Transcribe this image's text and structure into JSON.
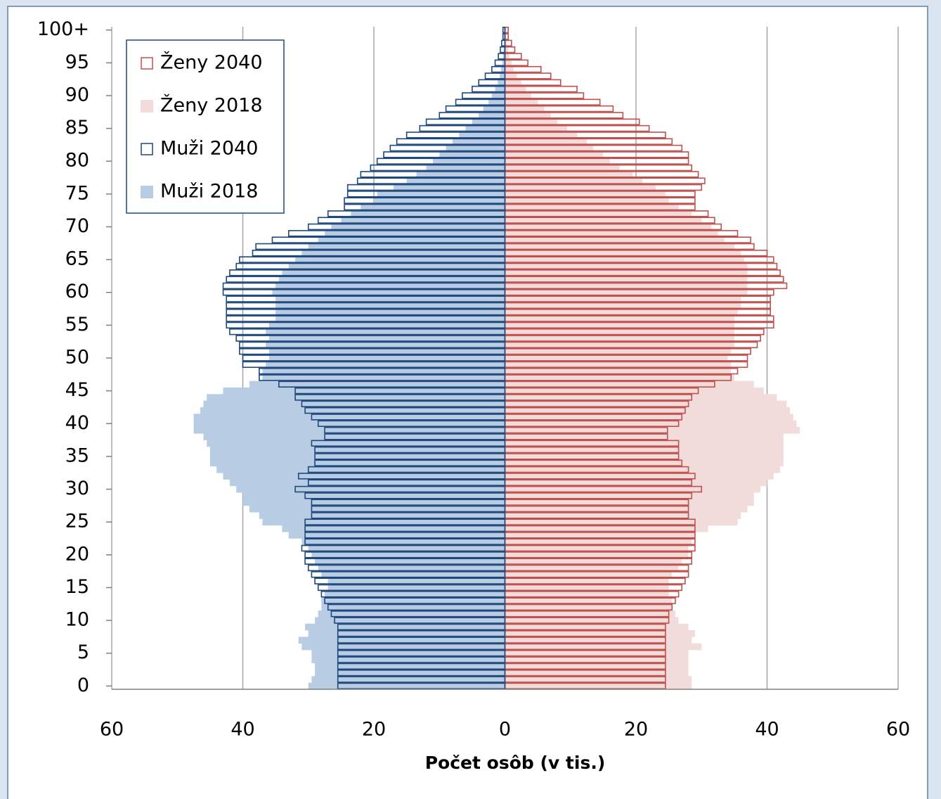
{
  "chart_data": {
    "type": "pyramid",
    "xlabel": "Počet osôb (v tis.)",
    "categories": [
      "0",
      null,
      null,
      null,
      null,
      "5",
      null,
      null,
      null,
      null,
      "10",
      null,
      null,
      null,
      null,
      "15",
      null,
      null,
      null,
      null,
      "20",
      null,
      null,
      null,
      null,
      "25",
      null,
      null,
      null,
      null,
      "30",
      null,
      null,
      null,
      null,
      "35",
      null,
      null,
      null,
      null,
      "40",
      null,
      null,
      null,
      null,
      "45",
      null,
      null,
      null,
      null,
      "50",
      null,
      null,
      null,
      null,
      "55",
      null,
      null,
      null,
      null,
      "60",
      null,
      null,
      null,
      null,
      "65",
      null,
      null,
      null,
      null,
      "70",
      null,
      null,
      null,
      null,
      "75",
      null,
      null,
      null,
      null,
      "80",
      null,
      null,
      null,
      null,
      "85",
      null,
      null,
      null,
      null,
      "90",
      null,
      null,
      null,
      null,
      "95",
      null,
      null,
      null,
      null,
      "100+"
    ],
    "xlim": [
      -60,
      60
    ],
    "xticks": [
      {
        "value": -60,
        "label": "60"
      },
      {
        "value": -40,
        "label": "40"
      },
      {
        "value": -20,
        "label": "20"
      },
      0,
      20,
      40,
      60
    ],
    "grid": true,
    "legend": "upper left",
    "series": [
      {
        "name": "Ženy 2040",
        "color": "#c0504d",
        "style": "outline",
        "values": [
          24.5,
          24.5,
          24.5,
          24.5,
          24.5,
          24.5,
          24.5,
          24.5,
          24.5,
          24.5,
          25,
          25,
          25.5,
          26,
          26.5,
          27,
          27.5,
          28,
          28,
          28.5,
          28.5,
          29,
          29,
          29,
          29,
          29,
          28,
          28,
          28,
          28.5,
          30,
          28.5,
          29,
          28,
          27,
          26.5,
          26.5,
          26.5,
          24.8,
          24.8,
          26.5,
          27,
          27.5,
          28,
          28.5,
          29.5,
          32,
          34.5,
          35.5,
          37,
          37,
          37.5,
          38.5,
          39,
          39.5,
          41,
          41,
          40.5,
          40.5,
          40.5,
          41,
          43,
          42.5,
          42,
          41.5,
          41,
          40,
          38,
          37.5,
          35.5,
          33,
          32,
          31,
          29,
          29,
          29,
          30,
          30.5,
          29.5,
          28.5,
          28,
          28,
          27,
          25.5,
          24.5,
          22,
          20.5,
          18,
          16.5,
          14.5,
          12,
          11,
          8.5,
          7,
          5.5,
          3.5,
          2.5,
          1.5,
          1,
          0.5,
          0.5
        ]
      },
      {
        "name": "Ženy 2018",
        "color": "#f2dcdb",
        "style": "filled",
        "values": [
          28.5,
          28.5,
          28,
          28,
          28,
          28,
          30,
          28.5,
          29,
          28,
          26.5,
          26,
          25.5,
          25.5,
          25,
          25,
          25,
          25.5,
          26.5,
          27,
          28,
          28,
          28.5,
          29,
          31,
          35.5,
          36,
          37,
          38,
          38,
          39,
          40,
          41,
          42,
          42.5,
          42.5,
          42.5,
          42.5,
          42.5,
          45,
          44.5,
          44,
          43.5,
          43,
          41.5,
          39.5,
          38,
          35,
          34.5,
          34.5,
          34,
          34.5,
          35,
          35,
          35,
          35,
          35,
          35.5,
          36,
          36,
          37,
          37,
          37,
          37,
          37,
          36.5,
          36,
          35,
          33.5,
          32.5,
          31.5,
          30,
          28.5,
          26.5,
          25,
          24.5,
          23,
          21,
          19.5,
          17.5,
          16,
          15,
          13.5,
          12.5,
          11,
          9.5,
          8,
          7,
          6,
          5,
          4,
          3.2,
          2.5,
          1.8,
          1.3,
          1,
          0.7,
          0.5,
          0.3,
          0.2,
          0.2
        ]
      },
      {
        "name": "Muži 2040",
        "color": "#1f497d",
        "style": "outline",
        "values": [
          -25.5,
          -25.5,
          -25.5,
          -25.5,
          -25.5,
          -25.5,
          -25.5,
          -25.5,
          -25.5,
          -25.5,
          -26,
          -26.5,
          -27,
          -27.5,
          -28,
          -28.5,
          -29,
          -29.5,
          -30,
          -30.5,
          -30.5,
          -31,
          -30.5,
          -30.5,
          -30.5,
          -30.5,
          -29.5,
          -29.5,
          -29.5,
          -30.5,
          -32,
          -30,
          -31.5,
          -30,
          -29,
          -29,
          -29,
          -29.5,
          -27.5,
          -27.5,
          -28.5,
          -29.5,
          -30.5,
          -31,
          -32,
          -32,
          -34.5,
          -37.5,
          -37.5,
          -40,
          -40,
          -40.5,
          -40.5,
          -41,
          -42,
          -42.5,
          -42.5,
          -42.5,
          -42.5,
          -42.5,
          -43,
          -43,
          -42.5,
          -42,
          -41,
          -40.5,
          -38.5,
          -38,
          -35.5,
          -33,
          -30,
          -28.5,
          -27,
          -24.5,
          -24.5,
          -24,
          -24,
          -22.5,
          -22,
          -20.5,
          -19.5,
          -18.5,
          -17.5,
          -16.5,
          -15,
          -13,
          -12,
          -10,
          -9,
          -7.5,
          -6.5,
          -5,
          -4,
          -3,
          -2,
          -1.5,
          -1,
          -0.7,
          -0.5,
          -0.3,
          -0.3
        ]
      },
      {
        "name": "Muži 2018",
        "color": "#b8cce4",
        "style": "filled",
        "values": [
          -30,
          -29.5,
          -29,
          -29,
          -29.5,
          -29.5,
          -31,
          -31.5,
          -30,
          -30.5,
          -29,
          -28.5,
          -28,
          -28,
          -27.5,
          -27,
          -27,
          -28,
          -28.5,
          -29,
          -29.5,
          -30,
          -31,
          -33,
          -34,
          -37,
          -37.5,
          -39,
          -40,
          -40,
          -41,
          -42,
          -43,
          -44,
          -45,
          -45,
          -45,
          -45.5,
          -46,
          -47.5,
          -47.5,
          -47.5,
          -46.5,
          -46,
          -45.5,
          -43,
          -39,
          -37,
          -37,
          -36.5,
          -36,
          -36,
          -36.5,
          -36,
          -36.5,
          -36,
          -35,
          -35,
          -35,
          -35,
          -35.5,
          -35,
          -34.5,
          -34,
          -33,
          -32,
          -31,
          -30,
          -28.5,
          -27.5,
          -26.5,
          -25,
          -23.5,
          -22,
          -20,
          -19.5,
          -17,
          -15,
          -13.5,
          -12,
          -11,
          -10,
          -9,
          -8,
          -7,
          -6,
          -5,
          -4,
          -3.3,
          -2.5,
          -2,
          -1.5,
          -1.1,
          -0.8,
          -0.6,
          -0.4,
          -0.3,
          -0.2,
          -0.1,
          -0.1,
          -0.1
        ]
      }
    ]
  }
}
